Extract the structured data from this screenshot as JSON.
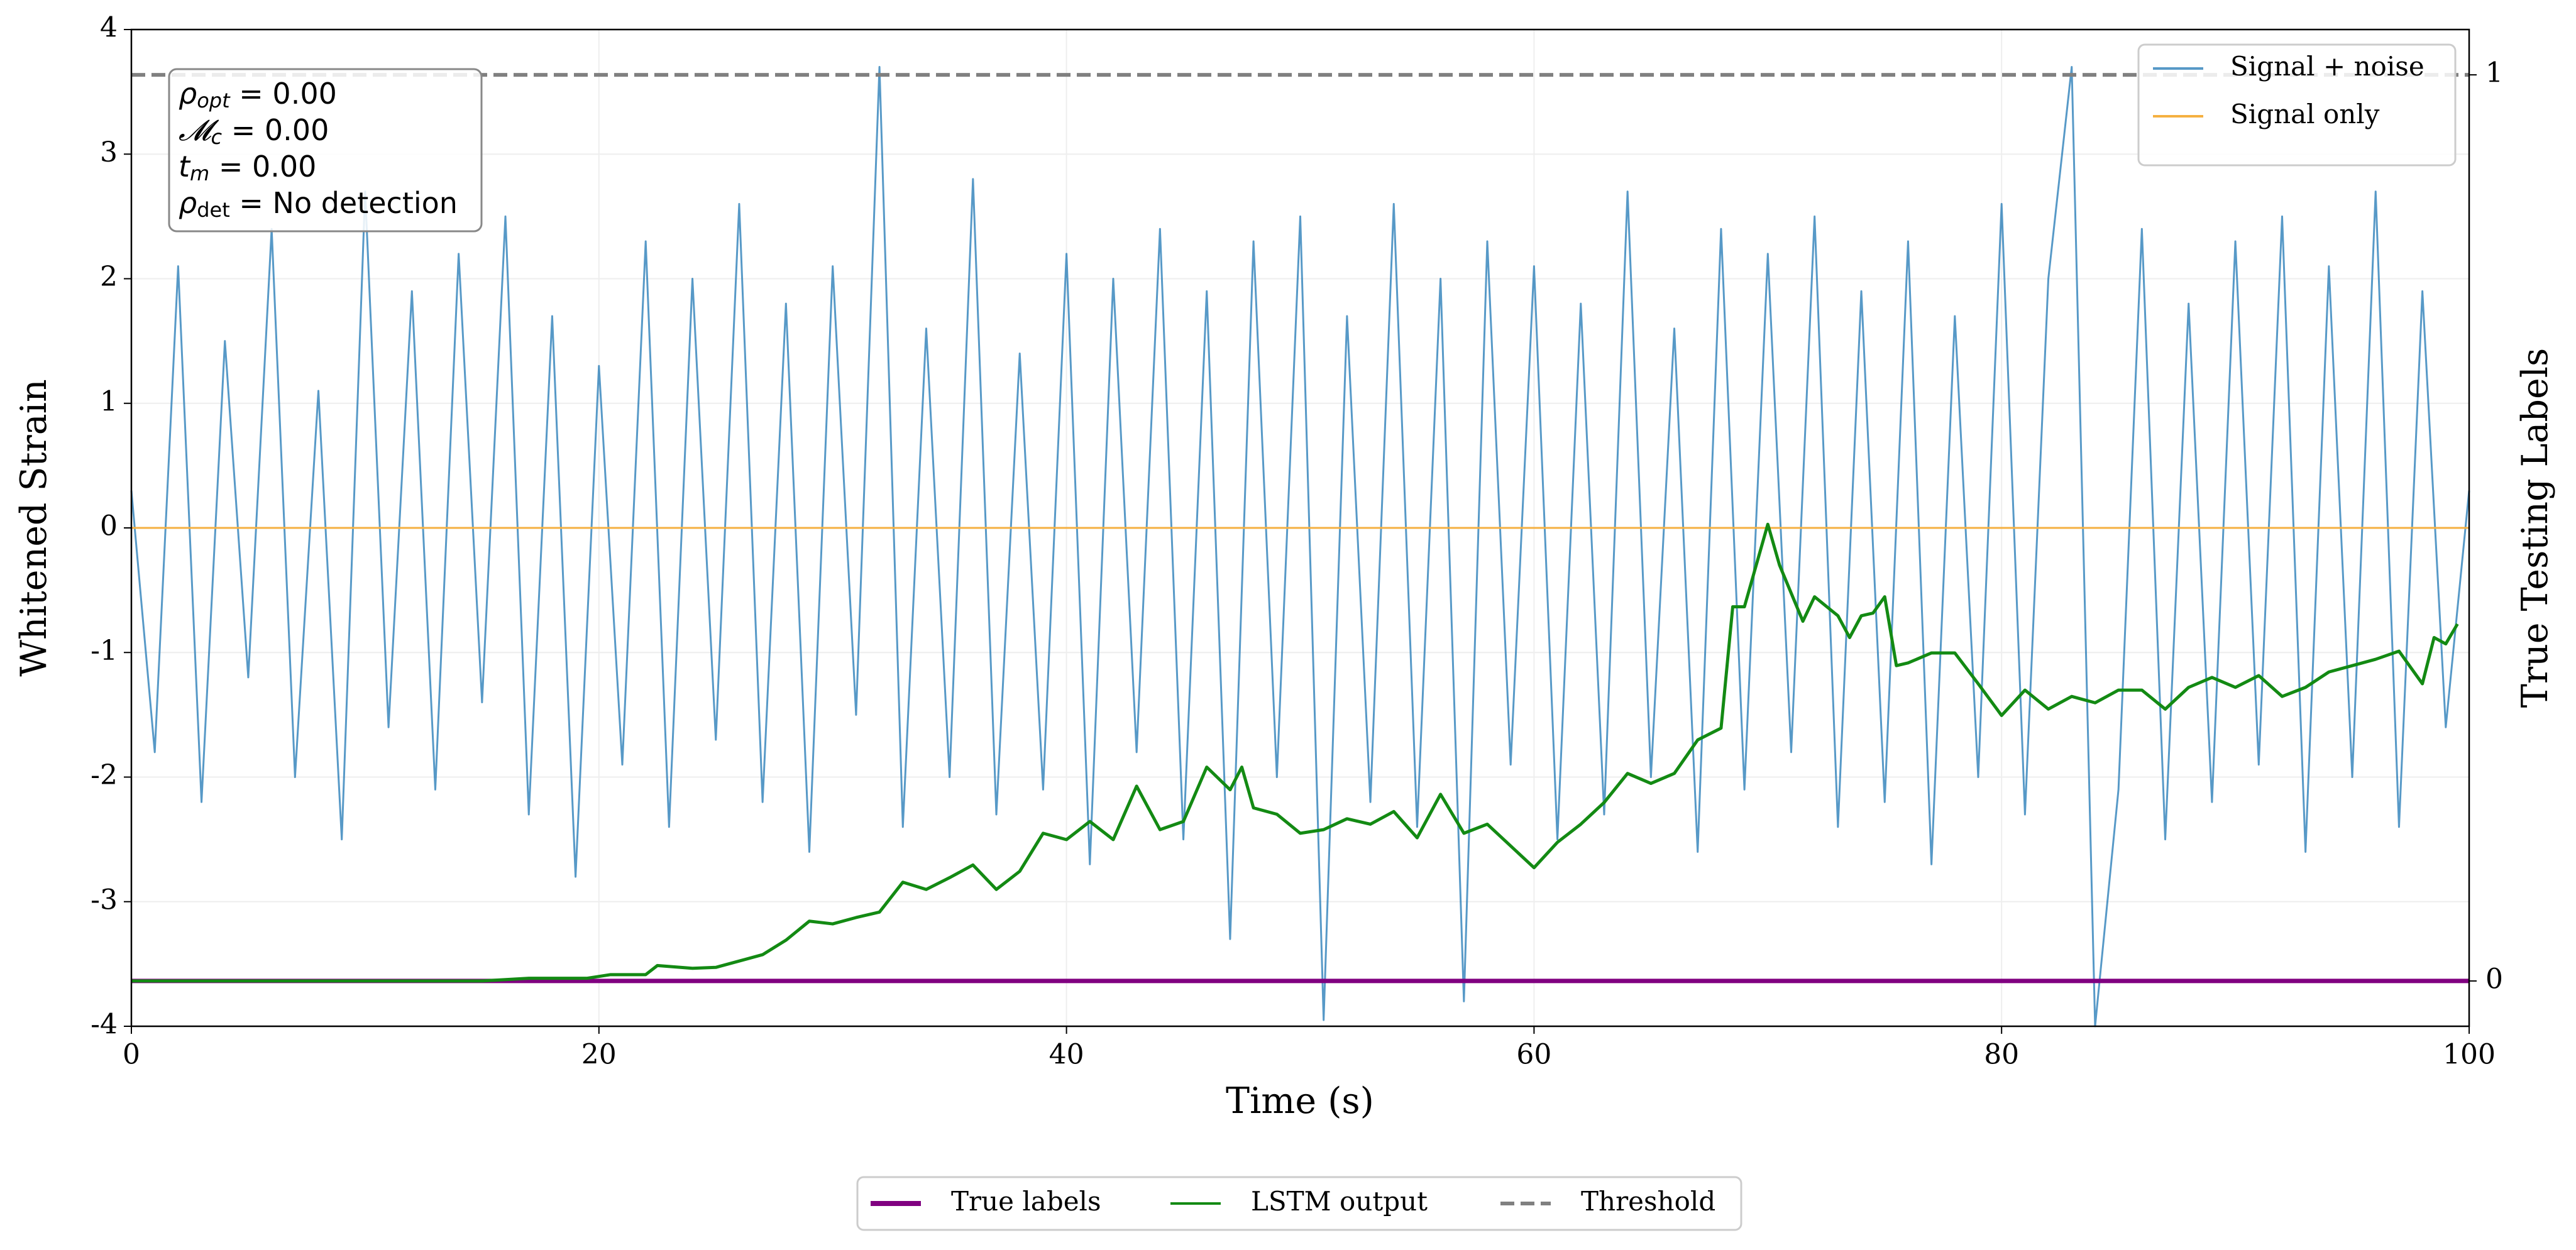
{
  "chart_data": {
    "type": "line",
    "xlabel": "Time (s)",
    "ylabel": "Whitened Strain",
    "y2label": "True Testing Labels",
    "xlim": [
      0,
      100
    ],
    "xticks": [
      0,
      20,
      40,
      60,
      80,
      100
    ],
    "ylim": [
      -4,
      4
    ],
    "yticks": [
      -4,
      -3,
      -2,
      -1,
      0,
      1,
      2,
      3,
      4
    ],
    "y2lim": [
      -0.05,
      1.05
    ],
    "y2ticks": [
      0,
      1
    ],
    "grid": true,
    "legend": "upper right",
    "annotations": [
      [
        "ρ",
        "opt",
        " = 0.00"
      ],
      [
        "𝓜",
        "c",
        " = 0.00"
      ],
      [
        "t",
        "m",
        " = 0.00"
      ],
      [
        "ρ",
        "det",
        " = No detection"
      ]
    ],
    "series": [
      {
        "name": "Signal + noise",
        "color": "#1f77b4",
        "opacity": 0.75,
        "axis": "y",
        "x": [
          0,
          1,
          2,
          3,
          4,
          5,
          6,
          7,
          8,
          9,
          10,
          11,
          12,
          13,
          14,
          15,
          16,
          17,
          18,
          19,
          20,
          21,
          22,
          23,
          24,
          25,
          26,
          27,
          28,
          29,
          30,
          31,
          32,
          33,
          34,
          35,
          36,
          37,
          38,
          39,
          40,
          41,
          42,
          43,
          44,
          45,
          46,
          47,
          48,
          49,
          50,
          51,
          52,
          53,
          54,
          55,
          56,
          57,
          58,
          59,
          60,
          61,
          62,
          63,
          64,
          65,
          66,
          67,
          68,
          69,
          70,
          71,
          72,
          73,
          74,
          75,
          76,
          77,
          78,
          79,
          80,
          81,
          82,
          83,
          84,
          85,
          86,
          87,
          88,
          89,
          90,
          91,
          92,
          93,
          94,
          95,
          96,
          97,
          98,
          99,
          100
        ],
        "values": [
          0.3,
          -1.8,
          2.1,
          -2.2,
          1.5,
          -1.2,
          2.4,
          -2.0,
          1.1,
          -2.5,
          2.7,
          -1.6,
          1.9,
          -2.1,
          2.2,
          -1.4,
          2.5,
          -2.3,
          1.7,
          -2.8,
          1.3,
          -1.9,
          2.3,
          -2.4,
          2.0,
          -1.7,
          2.6,
          -2.2,
          1.8,
          -2.6,
          2.1,
          -1.5,
          3.7,
          -2.4,
          1.6,
          -2.0,
          2.8,
          -2.3,
          1.4,
          -2.1,
          2.2,
          -2.7,
          2.0,
          -1.8,
          2.4,
          -2.5,
          1.9,
          -3.3,
          2.3,
          -2.0,
          2.5,
          -3.95,
          1.7,
          -2.2,
          2.6,
          -2.4,
          2.0,
          -3.8,
          2.3,
          -1.9,
          2.1,
          -2.5,
          1.8,
          -2.3,
          2.7,
          -2.0,
          1.6,
          -2.6,
          2.4,
          -2.1,
          2.2,
          -1.8,
          2.5,
          -2.4,
          1.9,
          -2.2,
          2.3,
          -2.7,
          1.7,
          -2.0,
          2.6,
          -2.3,
          2.0,
          3.7,
          -4.0,
          -2.1,
          2.4,
          -2.5,
          1.8,
          -2.2,
          2.3,
          -1.9,
          2.5,
          -2.6,
          2.1,
          -2.0,
          2.7,
          -2.4,
          1.9,
          -1.6,
          0.3
        ]
      },
      {
        "name": "Signal only",
        "color": "#f5b041",
        "axis": "y",
        "x": [
          0,
          100
        ],
        "values": [
          0,
          0
        ]
      },
      {
        "name": "True labels",
        "color": "#800080",
        "axis": "y2",
        "x": [
          0,
          100
        ],
        "values": [
          0,
          0
        ]
      },
      {
        "name": "LSTM output",
        "color": "#138a13",
        "axis": "y2",
        "x": [
          0,
          15,
          17,
          19.5,
          20.5,
          22,
          22.5,
          24,
          25,
          26,
          27,
          28,
          29,
          30,
          31,
          32,
          33,
          34,
          35,
          36,
          37,
          38,
          39,
          40,
          41,
          42,
          43,
          44,
          45,
          46,
          47,
          47.5,
          48,
          49,
          50,
          51,
          52,
          53,
          54,
          55,
          56,
          57,
          58,
          59,
          60,
          61,
          62,
          63,
          64,
          65,
          66,
          67,
          68,
          68.5,
          69,
          70,
          70.5,
          71.5,
          72,
          73,
          73.5,
          74,
          74.5,
          75,
          75.5,
          76,
          77,
          78,
          79,
          80,
          81,
          82,
          83,
          84,
          85,
          86,
          87,
          88,
          89,
          90,
          91,
          92,
          93,
          94,
          95,
          96,
          97,
          98,
          98.5,
          99,
          99.5
        ],
        "values": [
          0,
          0,
          0.003,
          0.003,
          0.007,
          0.007,
          0.017,
          0.014,
          0.015,
          0.022,
          0.029,
          0.045,
          0.066,
          0.063,
          0.07,
          0.076,
          0.109,
          0.101,
          0.114,
          0.128,
          0.101,
          0.121,
          0.163,
          0.156,
          0.176,
          0.156,
          0.215,
          0.167,
          0.176,
          0.236,
          0.211,
          0.236,
          0.191,
          0.184,
          0.163,
          0.167,
          0.179,
          0.173,
          0.187,
          0.158,
          0.206,
          0.163,
          0.173,
          0.149,
          0.125,
          0.153,
          0.173,
          0.197,
          0.229,
          0.218,
          0.229,
          0.266,
          0.279,
          0.413,
          0.413,
          0.504,
          0.459,
          0.397,
          0.424,
          0.403,
          0.379,
          0.403,
          0.406,
          0.424,
          0.348,
          0.351,
          0.362,
          0.362,
          0.328,
          0.293,
          0.321,
          0.3,
          0.314,
          0.307,
          0.321,
          0.321,
          0.3,
          0.324,
          0.335,
          0.324,
          0.337,
          0.314,
          0.324,
          0.341,
          0.348,
          0.355,
          0.364,
          0.328,
          0.379,
          0.372,
          0.394
        ]
      },
      {
        "name": "Threshold",
        "color": "#808080",
        "axis": "y2",
        "dashed": true,
        "x": [
          0,
          100
        ],
        "values": [
          1,
          1
        ]
      }
    ]
  }
}
